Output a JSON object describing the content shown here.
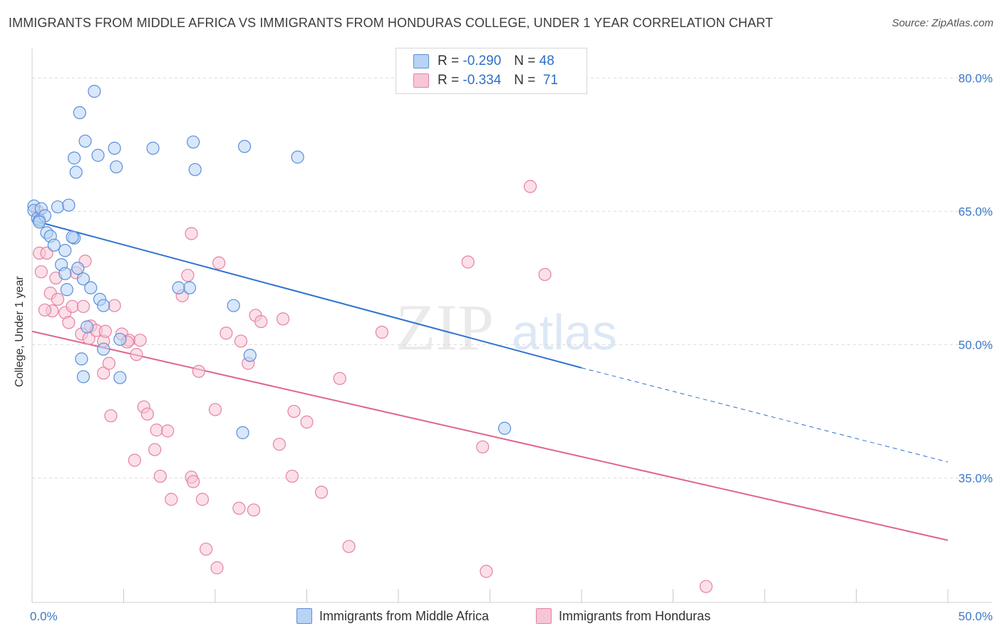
{
  "title": "IMMIGRANTS FROM MIDDLE AFRICA VS IMMIGRANTS FROM HONDURAS COLLEGE, UNDER 1 YEAR CORRELATION CHART",
  "source": "Source: ZipAtlas.com",
  "watermark": {
    "zip": "ZIP",
    "atlas": "atlas"
  },
  "legend_top": {
    "rows": [
      {
        "r_label": "R =",
        "r_value": "-0.290",
        "n_label": "N =",
        "n_value": "48"
      },
      {
        "r_label": "R =",
        "r_value": "-0.334",
        "n_label": "N =",
        "n_value": "71"
      }
    ]
  },
  "colors": {
    "blue_fill": "#b8d3f5",
    "blue_stroke": "#5b8fd6",
    "blue_line": "#2f72d0",
    "pink_fill": "#f7c6d6",
    "pink_stroke": "#e482a4",
    "pink_line": "#e0648f",
    "grid": "#dcdcdc",
    "tick_text": "#3b77c9"
  },
  "chart_data": {
    "type": "scatter",
    "title": "IMMIGRANTS FROM MIDDLE AFRICA VS IMMIGRANTS FROM HONDURAS COLLEGE, UNDER 1 YEAR CORRELATION CHART",
    "xlabel": "",
    "ylabel": "College, Under 1 year",
    "xlim": [
      0,
      50
    ],
    "ylim": [
      21,
      83
    ],
    "x_ticks": [
      "0.0%",
      "50.0%"
    ],
    "x_tick_values": [
      0,
      50
    ],
    "y_ticks": [
      "80.0%",
      "65.0%",
      "50.0%",
      "35.0%"
    ],
    "y_tick_values": [
      80,
      65,
      50,
      35
    ],
    "grid": true,
    "legend_position": "bottom",
    "series": [
      {
        "name": "Immigrants from Middle Africa",
        "color": "#5b8fd6",
        "r": -0.29,
        "n": 48,
        "points": [
          [
            0.1,
            65.6
          ],
          [
            0.1,
            65.1
          ],
          [
            0.3,
            64.2
          ],
          [
            0.4,
            64.0
          ],
          [
            0.5,
            65.3
          ],
          [
            0.7,
            64.5
          ],
          [
            0.8,
            62.6
          ],
          [
            1.0,
            62.2
          ],
          [
            1.4,
            65.5
          ],
          [
            2.0,
            65.7
          ],
          [
            2.3,
            62.0
          ],
          [
            1.8,
            60.6
          ],
          [
            2.5,
            58.6
          ],
          [
            2.8,
            57.4
          ],
          [
            1.6,
            59.0
          ],
          [
            1.8,
            58.0
          ],
          [
            1.9,
            56.2
          ],
          [
            3.2,
            56.4
          ],
          [
            3.0,
            52.0
          ],
          [
            3.7,
            55.1
          ],
          [
            3.9,
            54.4
          ],
          [
            4.8,
            50.6
          ],
          [
            3.9,
            49.5
          ],
          [
            2.7,
            48.4
          ],
          [
            2.8,
            46.4
          ],
          [
            4.8,
            46.3
          ],
          [
            2.4,
            69.4
          ],
          [
            2.9,
            72.9
          ],
          [
            3.6,
            71.3
          ],
          [
            4.5,
            72.1
          ],
          [
            4.6,
            70.0
          ],
          [
            2.3,
            71.0
          ],
          [
            2.6,
            76.1
          ],
          [
            3.4,
            78.5
          ],
          [
            6.6,
            72.1
          ],
          [
            8.8,
            72.8
          ],
          [
            8.9,
            69.7
          ],
          [
            11.6,
            72.3
          ],
          [
            14.5,
            71.1
          ],
          [
            8.6,
            56.4
          ],
          [
            8.0,
            56.4
          ],
          [
            11.0,
            54.4
          ],
          [
            11.9,
            48.8
          ],
          [
            11.5,
            40.1
          ],
          [
            25.8,
            40.6
          ],
          [
            0.4,
            63.8
          ],
          [
            2.2,
            62.1
          ],
          [
            1.2,
            61.2
          ]
        ]
      },
      {
        "name": "Immigrants from Honduras",
        "color": "#e482a4",
        "r": -0.334,
        "n": 71,
        "points": [
          [
            0.3,
            65.0
          ],
          [
            0.4,
            60.3
          ],
          [
            0.5,
            58.2
          ],
          [
            0.8,
            60.3
          ],
          [
            1.0,
            55.8
          ],
          [
            1.4,
            55.1
          ],
          [
            1.1,
            53.8
          ],
          [
            1.8,
            53.6
          ],
          [
            2.0,
            52.5
          ],
          [
            2.2,
            54.3
          ],
          [
            2.4,
            58.1
          ],
          [
            2.7,
            51.2
          ],
          [
            2.8,
            54.3
          ],
          [
            3.1,
            50.7
          ],
          [
            3.2,
            52.1
          ],
          [
            3.5,
            51.6
          ],
          [
            3.9,
            50.4
          ],
          [
            3.9,
            46.8
          ],
          [
            4.0,
            51.5
          ],
          [
            4.2,
            47.9
          ],
          [
            4.5,
            54.4
          ],
          [
            4.9,
            51.2
          ],
          [
            5.3,
            50.5
          ],
          [
            5.7,
            48.9
          ],
          [
            5.9,
            50.5
          ],
          [
            4.3,
            42.0
          ],
          [
            5.6,
            37.0
          ],
          [
            6.1,
            43.0
          ],
          [
            6.3,
            42.2
          ],
          [
            6.8,
            40.4
          ],
          [
            6.7,
            38.2
          ],
          [
            7.0,
            35.2
          ],
          [
            7.4,
            40.3
          ],
          [
            7.6,
            32.6
          ],
          [
            8.2,
            55.5
          ],
          [
            8.5,
            57.8
          ],
          [
            8.7,
            62.5
          ],
          [
            9.1,
            47.0
          ],
          [
            8.7,
            35.1
          ],
          [
            8.8,
            34.6
          ],
          [
            9.3,
            32.6
          ],
          [
            9.5,
            27.0
          ],
          [
            10.0,
            42.7
          ],
          [
            10.2,
            59.2
          ],
          [
            10.6,
            51.3
          ],
          [
            11.4,
            50.4
          ],
          [
            11.8,
            47.9
          ],
          [
            12.2,
            53.3
          ],
          [
            12.5,
            52.6
          ],
          [
            12.1,
            31.4
          ],
          [
            11.3,
            31.6
          ],
          [
            10.1,
            24.9
          ],
          [
            13.5,
            38.8
          ],
          [
            13.7,
            52.9
          ],
          [
            14.2,
            35.2
          ],
          [
            14.3,
            42.5
          ],
          [
            15.0,
            41.3
          ],
          [
            15.8,
            33.4
          ],
          [
            16.8,
            46.2
          ],
          [
            17.3,
            27.3
          ],
          [
            19.1,
            51.4
          ],
          [
            23.8,
            59.3
          ],
          [
            24.6,
            38.5
          ],
          [
            24.8,
            24.5
          ],
          [
            27.2,
            67.8
          ],
          [
            28.0,
            57.9
          ],
          [
            36.8,
            22.8
          ],
          [
            1.3,
            57.5
          ],
          [
            2.9,
            59.4
          ],
          [
            0.7,
            53.9
          ],
          [
            5.2,
            50.3
          ]
        ]
      }
    ],
    "trend_lines": [
      {
        "series": "Immigrants from Middle Africa",
        "solid": [
          [
            0,
            64.0
          ],
          [
            30,
            47.4
          ]
        ],
        "dashed": [
          [
            30,
            47.4
          ],
          [
            50,
            36.8
          ]
        ]
      },
      {
        "series": "Immigrants from Honduras",
        "solid": [
          [
            0,
            51.5
          ],
          [
            50,
            28.0
          ]
        ]
      }
    ]
  }
}
